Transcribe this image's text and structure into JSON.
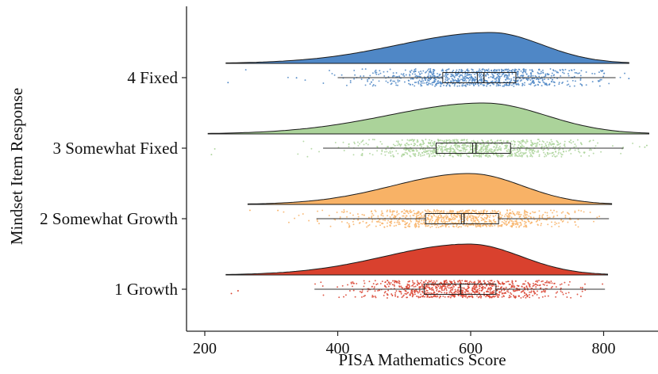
{
  "chart_data": {
    "type": "raincloud",
    "title": "",
    "xlabel": "PISA Mathematics Score",
    "ylabel": "Mindset Item Response",
    "xlim": [
      200,
      860
    ],
    "xticks": [
      200,
      400,
      600,
      800
    ],
    "grid": false,
    "legend": "none",
    "series": [
      {
        "name": "4 Fixed",
        "color": "#4f87c6",
        "density_range": [
          232,
          838
        ],
        "density_mode": 630,
        "box": {
          "whisker_low": 400,
          "q1": 558,
          "median": 620,
          "q3": 668,
          "whisker_high": 818,
          "mean": 610
        },
        "points_range": [
          232,
          838
        ],
        "outliers": [
          235,
          338,
          838
        ]
      },
      {
        "name": "3 Somewhat Fixed",
        "color": "#abd39a",
        "density_range": [
          205,
          868
        ],
        "density_mode": 620,
        "box": {
          "whisker_low": 378,
          "q1": 548,
          "median": 608,
          "q3": 660,
          "whisker_high": 830,
          "mean": 603
        },
        "points_range": [
          210,
          865
        ],
        "outliers": [
          210,
          215,
          862,
          865
        ]
      },
      {
        "name": "2 Somewhat Growth",
        "color": "#f8b266",
        "density_range": [
          265,
          812
        ],
        "density_mode": 598,
        "box": {
          "whisker_low": 368,
          "q1": 532,
          "median": 590,
          "q3": 642,
          "whisker_high": 808,
          "mean": 586
        },
        "points_range": [
          265,
          812
        ],
        "outliers": [
          268,
          310
        ]
      },
      {
        "name": "1 Growth",
        "color": "#d9412e",
        "density_range": [
          232,
          806
        ],
        "density_mode": 598,
        "box": {
          "whisker_low": 365,
          "q1": 530,
          "median": 585,
          "q3": 638,
          "whisker_high": 802,
          "mean": 585
        },
        "points_range": [
          240,
          806
        ],
        "outliers": [
          240,
          250
        ]
      }
    ]
  }
}
